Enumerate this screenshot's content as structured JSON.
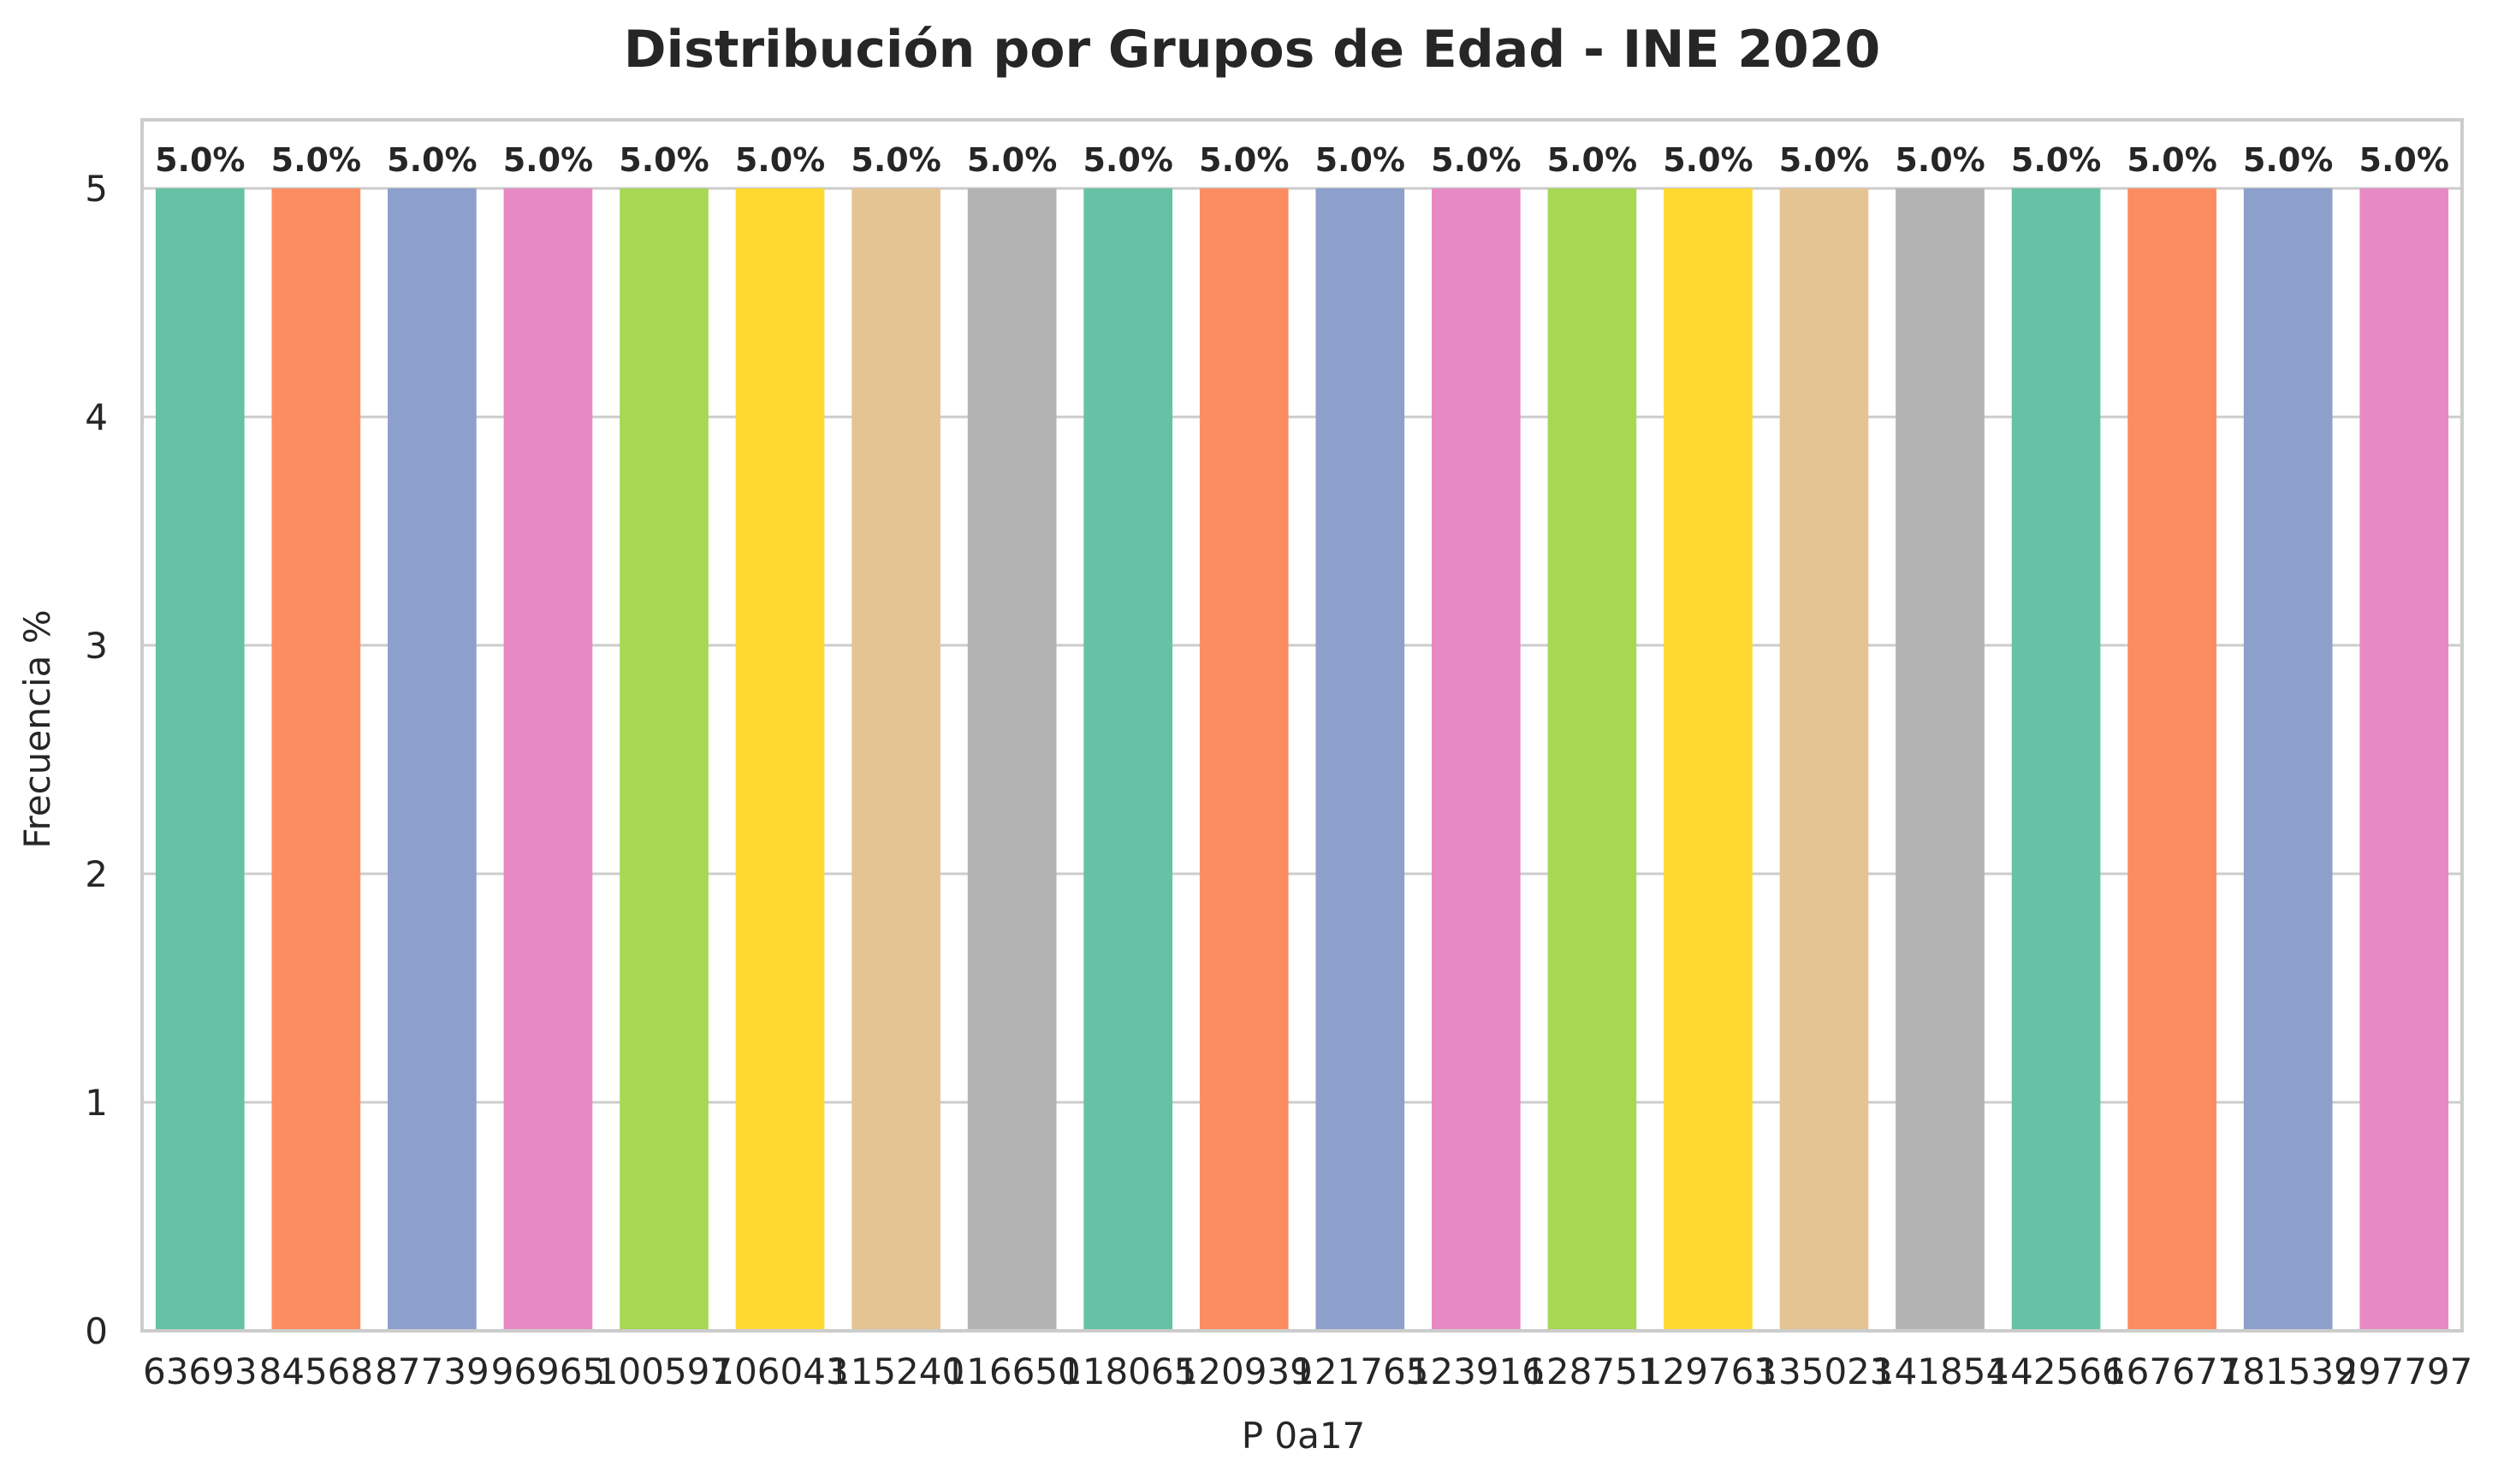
{
  "chart_data": {
    "type": "bar",
    "title": "Distribución por Grupos de Edad - INE 2020",
    "xlabel": "P 0a17",
    "ylabel": "Frecuencia %",
    "categories": [
      "63693",
      "84568",
      "87739",
      "96965",
      "100597",
      "106043",
      "115240",
      "116650",
      "118065",
      "120939",
      "121765",
      "123916",
      "128751",
      "129763",
      "135023",
      "141854",
      "142566",
      "167677",
      "181539",
      "297797"
    ],
    "values": [
      5,
      5,
      5,
      5,
      5,
      5,
      5,
      5,
      5,
      5,
      5,
      5,
      5,
      5,
      5,
      5,
      5,
      5,
      5,
      5
    ],
    "data_labels": [
      "5.0%",
      "5.0%",
      "5.0%",
      "5.0%",
      "5.0%",
      "5.0%",
      "5.0%",
      "5.0%",
      "5.0%",
      "5.0%",
      "5.0%",
      "5.0%",
      "5.0%",
      "5.0%",
      "5.0%",
      "5.0%",
      "5.0%",
      "5.0%",
      "5.0%",
      "5.0%"
    ],
    "colors": [
      "#66c2a5",
      "#fc8d62",
      "#8da0cb",
      "#e78ac3",
      "#a6d854",
      "#ffd92f",
      "#e5c494",
      "#b3b3b3"
    ],
    "ylim": [
      0,
      5.3
    ],
    "yticks": [
      0,
      1,
      2,
      3,
      4,
      5
    ],
    "grid": true,
    "grid_axis": "y",
    "legend": "none"
  }
}
